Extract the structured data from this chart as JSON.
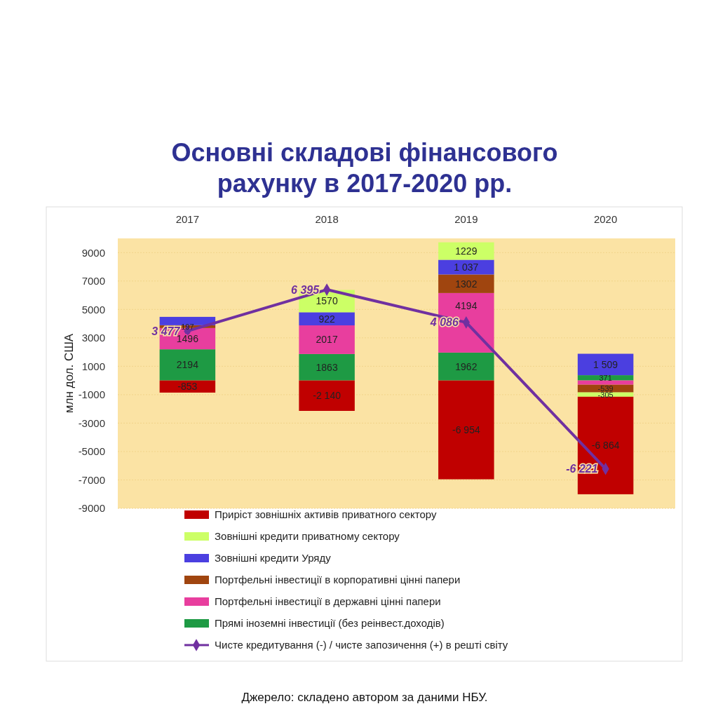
{
  "chart_data": {
    "type": "bar",
    "title": "Основні складові фінансового рахунку в 2017-2020 рр.",
    "ylabel": "млн дол. США",
    "annotations": [
      "Джерело: складено автором за даними НБУ."
    ],
    "categories": [
      "2017",
      "2018",
      "2019",
      "2020"
    ],
    "stacked": true,
    "ylim": [
      -9000,
      10000
    ],
    "yticks": [
      -9000,
      -7000,
      -5000,
      -3000,
      -1000,
      1000,
      3000,
      5000,
      7000,
      9000
    ],
    "grid": "y",
    "legend": "bottom",
    "series": [
      {
        "name": "Прямі іноземні інвестиції (без реінвест.доходів)",
        "color": "#1e9a44",
        "values": [
          2194,
          1863,
          1962,
          371
        ],
        "value_labels": [
          "2194",
          "1863",
          "1962",
          "371"
        ]
      },
      {
        "name": "Портфельні інвестиції в державні цінні папери",
        "color": "#e83e9e",
        "values": [
          1496,
          2017,
          4194,
          -300
        ],
        "value_labels": [
          "1496",
          "2017",
          "4194",
          null
        ]
      },
      {
        "name": "Портфельні інвестиції в корпоративні цінні папери",
        "color": "#a0450f",
        "values": [
          197,
          null,
          1302,
          -539
        ],
        "value_labels": [
          "197",
          null,
          "1302",
          "-539"
        ]
      },
      {
        "name": "Зовнішні кредити Уряду",
        "color": "#4b3fe0",
        "values": [
          590,
          922,
          1037,
          1509
        ],
        "value_labels": [
          null,
          "922",
          "1 037",
          "1 509"
        ]
      },
      {
        "name": "Зовнішні кредити приватному сектору",
        "color": "#ccff66",
        "values": [
          null,
          1570,
          1229,
          -305
        ],
        "value_labels": [
          null,
          "1570",
          "1229",
          "-305"
        ]
      },
      {
        "name": "Приріст зовнішніх активів приватного сектору",
        "color": "#c00000",
        "values": [
          -853,
          -2140,
          -6954,
          -6864
        ],
        "value_labels": [
          "-853",
          "-2 140",
          "-6 954",
          "-6 864"
        ]
      },
      {
        "type": "line",
        "name": "Чисте кредитування (-) / чисте запозичення (+) в решті світу",
        "color": "#7030a0",
        "marker": "diamond",
        "values": [
          3477,
          6395,
          4086,
          -6221
        ],
        "value_labels": [
          "3 477",
          "6 395",
          "4 086",
          "-6 221"
        ]
      }
    ]
  }
}
